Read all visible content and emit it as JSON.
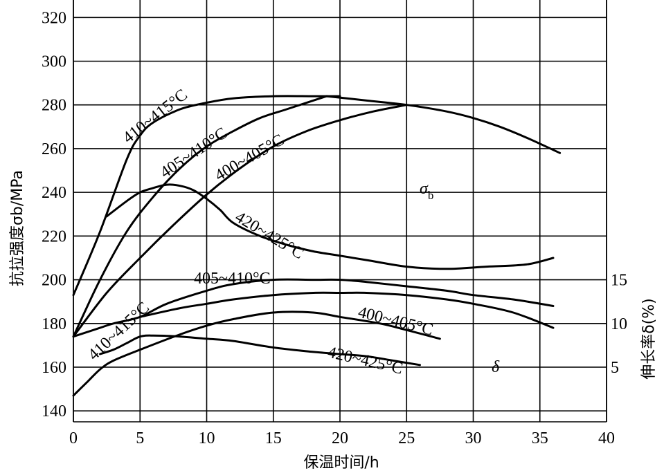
{
  "chart_data": {
    "type": "line",
    "title": "",
    "xlabel": "保温时间/h",
    "ylabel_left": "抗拉强度σb/MPa",
    "ylabel_right": "伸长率δ(%)",
    "xlim": [
      0,
      40
    ],
    "ylim_left": [
      135,
      328
    ],
    "xticks": [
      0,
      5,
      10,
      15,
      20,
      25,
      30,
      35,
      40
    ],
    "yticks_left": [
      140,
      160,
      180,
      200,
      220,
      240,
      260,
      280,
      300,
      320
    ],
    "right_axis_ticks": [
      {
        "label": "5",
        "value": 5,
        "left_equivalent": 160
      },
      {
        "label": "10",
        "value": 10,
        "left_equivalent": 180
      },
      {
        "label": "15",
        "value": 15,
        "left_equivalent": 200
      }
    ],
    "grid": true,
    "group_symbols": {
      "strength": "σ",
      "strength_sub": "b",
      "elongation": "δ"
    },
    "series": [
      {
        "name": "410~415°C",
        "group": "sigma_b",
        "label": "410~415°C",
        "x": [
          0,
          2,
          4,
          5,
          6,
          8,
          10,
          12,
          15,
          18,
          20
        ],
        "y": [
          193,
          222,
          255,
          266,
          272,
          278,
          281,
          283,
          284,
          284,
          284
        ]
      },
      {
        "name": "405~410°C",
        "group": "sigma_b",
        "label": "405~410°C",
        "x": [
          0,
          2,
          4,
          6,
          8,
          10,
          12,
          14,
          16,
          19
        ],
        "y": [
          174,
          200,
          222,
          238,
          251,
          261,
          268,
          274,
          278,
          284
        ]
      },
      {
        "name": "400~405°C",
        "group": "sigma_b",
        "label": "400~405°C",
        "x": [
          0,
          2.5,
          5,
          7.5,
          10,
          12.5,
          15,
          17.5,
          20,
          22.5,
          25
        ],
        "y": [
          174,
          194,
          210,
          225,
          239,
          251,
          261,
          268,
          273,
          277,
          280
        ]
      },
      {
        "name": "sigma_b merged",
        "group": "sigma_b",
        "label": "",
        "x": [
          19,
          22,
          25,
          28,
          30,
          32,
          34,
          36.5
        ],
        "y": [
          284,
          282,
          280,
          277,
          274,
          270,
          265,
          258
        ]
      },
      {
        "name": "420~425°C",
        "group": "sigma_b",
        "label": "420~425°C",
        "x": [
          2.5,
          4,
          5,
          6,
          7,
          8,
          9,
          10,
          11,
          12,
          14,
          16,
          18,
          20,
          22,
          25,
          28,
          31,
          34,
          36
        ],
        "y": [
          229,
          236,
          240,
          242,
          243.5,
          243,
          241,
          237,
          232,
          226,
          220,
          216,
          213,
          211,
          209,
          206,
          205,
          206,
          207,
          210
        ]
      },
      {
        "name": "410~415°C δ",
        "group": "delta",
        "label": "410~415°C",
        "x": [
          0,
          2,
          3,
          5,
          7,
          10,
          12,
          15,
          18,
          20,
          22,
          25,
          28,
          30,
          33,
          36
        ],
        "y": [
          174,
          178,
          180,
          183,
          189,
          195,
          198,
          200,
          200,
          200,
          199,
          197,
          195,
          193,
          191,
          188
        ]
      },
      {
        "name": "405~410°C δ",
        "group": "delta",
        "label": "405~410°C",
        "x": [
          5,
          8,
          10,
          12,
          15,
          18,
          20,
          22,
          25,
          28,
          30,
          33,
          36
        ],
        "y": [
          183,
          187,
          189,
          191,
          193,
          194,
          194,
          194,
          193,
          191,
          189,
          185,
          178
        ]
      },
      {
        "name": "400~405°C δ",
        "group": "delta",
        "label": "400~405°C",
        "x": [
          0,
          1,
          2,
          3,
          5,
          8,
          10,
          12,
          15,
          18,
          20,
          23,
          25,
          27.5
        ],
        "y": [
          147,
          153,
          159,
          163,
          168,
          175,
          179,
          182,
          185,
          185,
          183,
          180,
          177,
          173
        ]
      },
      {
        "name": "420~425°C δ",
        "group": "delta",
        "label": "420~425°C",
        "x": [
          2,
          3,
          4,
          5,
          6,
          8,
          10,
          12,
          15,
          18,
          20,
          22,
          24,
          26
        ],
        "y": [
          166,
          168,
          171,
          174,
          174.5,
          174,
          173,
          172,
          169,
          167,
          166,
          165,
          163,
          161
        ]
      }
    ]
  }
}
